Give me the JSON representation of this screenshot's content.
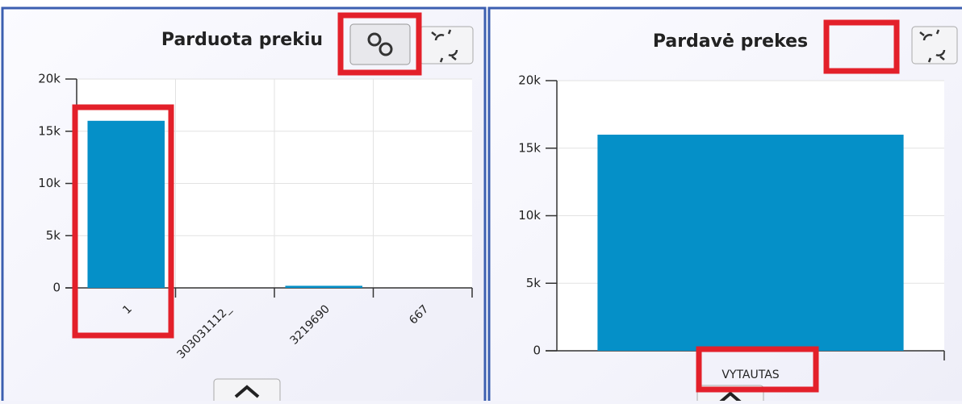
{
  "chart_data": [
    {
      "type": "bar",
      "title": "Parduota prekiu",
      "categories": [
        "1",
        "303031112_",
        "3219690",
        "667"
      ],
      "values": [
        16000,
        0,
        200,
        0
      ],
      "color": "#0590c8",
      "ylim": [
        0,
        20000
      ],
      "yticks": [
        0,
        {
          "value": 5000,
          "label": "5k"
        },
        {
          "value": 10000,
          "label": "10k"
        },
        {
          "value": 15000,
          "label": "15k"
        },
        {
          "value": 20000,
          "label": "20k"
        }
      ],
      "grid": true
    },
    {
      "type": "bar",
      "title": "Pardavė prekes",
      "categories": [
        "VYTAUTAS"
      ],
      "values": [
        16000
      ],
      "color": "#0590c8",
      "ylim": [
        0,
        20000
      ],
      "yticks": [
        0,
        {
          "value": 5000,
          "label": "5k"
        },
        {
          "value": 10000,
          "label": "10k"
        },
        {
          "value": 15000,
          "label": "15k"
        },
        {
          "value": 20000,
          "label": "20k"
        }
      ],
      "grid": true
    }
  ]
}
